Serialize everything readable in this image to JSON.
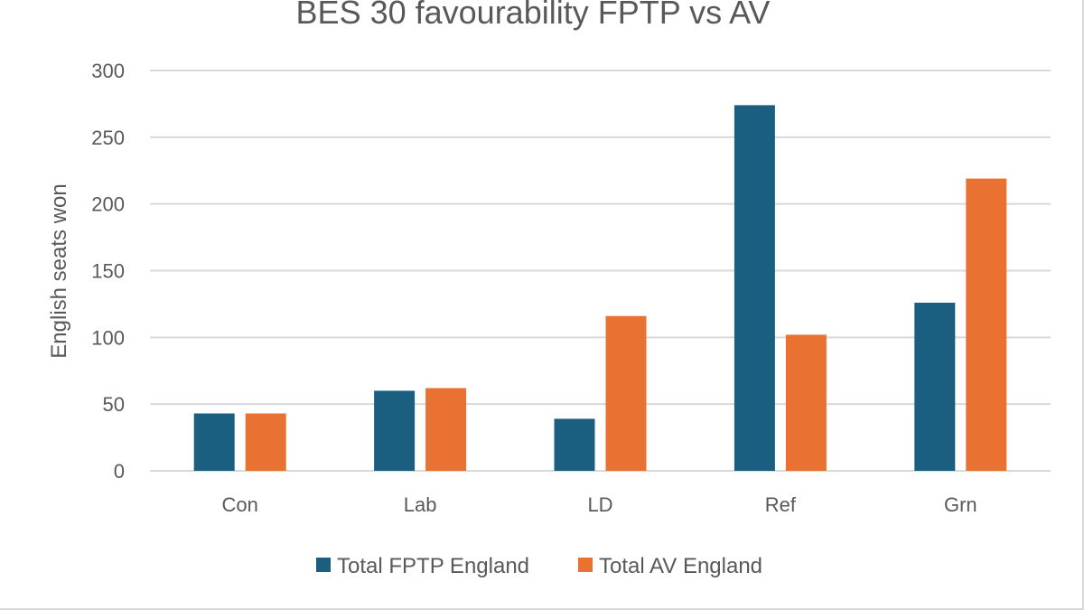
{
  "chart_data": {
    "type": "bar",
    "title": "BES 30 favourability FPTP vs AV",
    "xlabel": "",
    "ylabel": "English seats won",
    "ylim": [
      0,
      300
    ],
    "yticks": [
      0,
      50,
      100,
      150,
      200,
      250,
      300
    ],
    "ytick_labels": [
      "0",
      "50",
      "100",
      "150",
      "200",
      "250",
      "300"
    ],
    "grid": true,
    "legend_position": "bottom",
    "categories": [
      "Con",
      "Lab",
      "LD",
      "Ref",
      "Grn"
    ],
    "series": [
      {
        "name": "Total FPTP England",
        "color": "#1a5e80",
        "values": [
          43,
          60,
          39,
          274,
          126
        ]
      },
      {
        "name": "Total AV England",
        "color": "#e97132",
        "values": [
          43,
          62,
          116,
          102,
          219
        ]
      }
    ]
  }
}
